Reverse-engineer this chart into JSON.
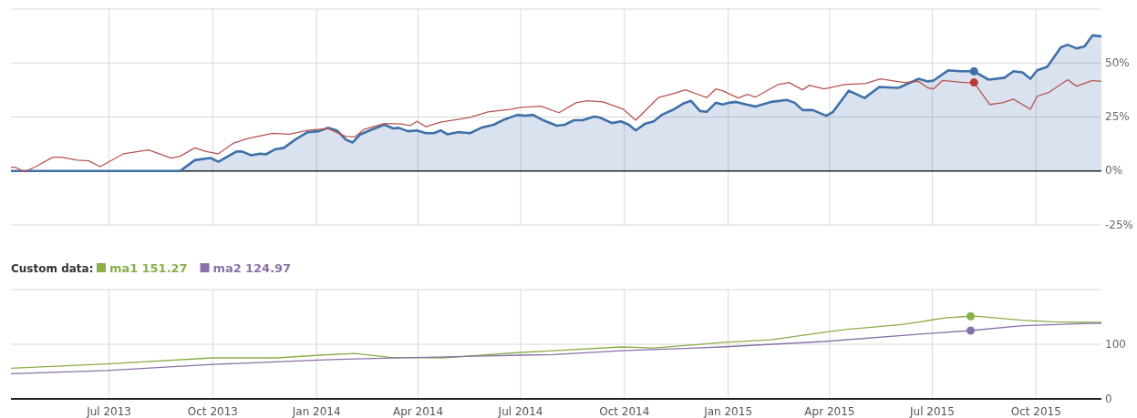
{
  "chart_data": [
    {
      "type": "line",
      "xlim": [
        "2013-04-05",
        "2015-11-28"
      ],
      "ylim": [
        -25,
        75
      ],
      "xticks": [
        {
          "value": "2013-07-01",
          "label": null
        },
        {
          "value": "2013-10-01",
          "label": null
        },
        {
          "value": "2014-01-01",
          "label": null
        },
        {
          "value": "2014-04-01",
          "label": null
        },
        {
          "value": "2014-07-01",
          "label": null
        },
        {
          "value": "2014-10-01",
          "label": null
        },
        {
          "value": "2015-01-01",
          "label": null
        },
        {
          "value": "2015-04-01",
          "label": null
        },
        {
          "value": "2015-07-01",
          "label": null
        },
        {
          "value": "2015-10-01",
          "label": null
        }
      ],
      "yticks": [
        {
          "value": -25,
          "label": "-25%"
        },
        {
          "value": 0,
          "label": "0%"
        },
        {
          "value": 25,
          "label": "25%"
        },
        {
          "value": 50,
          "label": "50%"
        },
        {
          "value": 75,
          "label": null
        }
      ],
      "tick_labels": "y",
      "grid": true,
      "ref_lines": [
        {
          "axis": "y",
          "value": 0,
          "color": "#222222"
        }
      ],
      "series": [
        {
          "type": "area",
          "color": "#3f70a8",
          "x": [
            "2013-04-05",
            "2013-09-02",
            "2013-09-15",
            "2013-09-29",
            "2013-10-06",
            "2013-10-22",
            "2013-10-27",
            "2013-11-04",
            "2013-11-12",
            "2013-11-17",
            "2013-11-25",
            "2013-12-03",
            "2013-12-13",
            "2013-12-24",
            "2014-01-03",
            "2014-01-11",
            "2014-01-19",
            "2014-01-27",
            "2014-02-02",
            "2014-02-09",
            "2014-02-19",
            "2014-03-02",
            "2014-03-10",
            "2014-03-15",
            "2014-03-23",
            "2014-03-31",
            "2014-04-08",
            "2014-04-15",
            "2014-04-21",
            "2014-04-27",
            "2014-05-07",
            "2014-05-17",
            "2014-05-27",
            "2014-06-07",
            "2014-06-15",
            "2014-06-28",
            "2014-07-05",
            "2014-07-12",
            "2014-07-21",
            "2014-08-02",
            "2014-08-09",
            "2014-08-17",
            "2014-08-25",
            "2014-09-04",
            "2014-09-09",
            "2014-09-20",
            "2014-09-28",
            "2014-10-05",
            "2014-10-11",
            "2014-10-19",
            "2014-10-27",
            "2014-11-03",
            "2014-11-14",
            "2014-11-22",
            "2014-11-29",
            "2014-12-07",
            "2014-12-13",
            "2014-12-21",
            "2014-12-27",
            "2015-01-02",
            "2015-01-08",
            "2015-01-17",
            "2015-01-25",
            "2015-02-08",
            "2015-02-22",
            "2015-03-01",
            "2015-03-08",
            "2015-03-17",
            "2015-03-29",
            "2015-04-04",
            "2015-04-18",
            "2015-05-02",
            "2015-05-15",
            "2015-06-01",
            "2015-06-19",
            "2015-06-27",
            "2015-07-02",
            "2015-07-15",
            "2015-07-26",
            "2015-08-07",
            "2015-08-20",
            "2015-09-03",
            "2015-09-11",
            "2015-09-19",
            "2015-09-26",
            "2015-10-02",
            "2015-10-11",
            "2015-10-23",
            "2015-10-29",
            "2015-11-06",
            "2015-11-13",
            "2015-11-20",
            "2015-11-28"
          ],
          "values": [
            0,
            0,
            5,
            6,
            4.3,
            9,
            9,
            7.3,
            8,
            7.7,
            10,
            10.7,
            14.5,
            18,
            18.4,
            20,
            18.8,
            14.5,
            13.2,
            17,
            19.2,
            21.4,
            19.7,
            20,
            18.4,
            18.8,
            17.5,
            17.5,
            18.8,
            17,
            18,
            17.5,
            20,
            21.4,
            23.5,
            26,
            25.6,
            26,
            23.5,
            21,
            21.4,
            23.5,
            23.5,
            25.2,
            24.8,
            22.2,
            23,
            21.4,
            18.8,
            21.8,
            23,
            26,
            28.6,
            31.2,
            32.5,
            27.8,
            27.4,
            31.6,
            30.8,
            31.6,
            32,
            30.8,
            29.9,
            32,
            32.9,
            31.6,
            28.2,
            28.2,
            25.6,
            27.4,
            37.2,
            33.8,
            38.9,
            38.5,
            42.7,
            41.5,
            41.9,
            46.6,
            46.2,
            46.2,
            42.3,
            43.2,
            46.2,
            45.7,
            42.7,
            46.6,
            48.3,
            57.3,
            58.5,
            56.8,
            57.7,
            62.8,
            62.4
          ]
        },
        {
          "color": "#b85450",
          "x": [
            "2013-04-05",
            "2013-04-09",
            "2013-04-17",
            "2013-04-27",
            "2013-05-12",
            "2013-05-20",
            "2013-06-03",
            "2013-06-13",
            "2013-06-23",
            "2013-07-14",
            "2013-08-05",
            "2013-08-25",
            "2013-09-02",
            "2013-09-15",
            "2013-09-25",
            "2013-10-06",
            "2013-10-19",
            "2013-11-01",
            "2013-11-23",
            "2013-12-08",
            "2013-12-24",
            "2014-01-11",
            "2014-01-27",
            "2014-02-04",
            "2014-02-12",
            "2014-03-02",
            "2014-03-17",
            "2014-03-25",
            "2014-03-31",
            "2014-04-08",
            "2014-04-21",
            "2014-05-17",
            "2014-06-02",
            "2014-06-23",
            "2014-07-01",
            "2014-07-19",
            "2014-08-04",
            "2014-08-19",
            "2014-08-29",
            "2014-09-12",
            "2014-09-30",
            "2014-10-11",
            "2014-10-31",
            "2014-11-14",
            "2014-11-24",
            "2014-12-13",
            "2014-12-21",
            "2014-12-27",
            "2015-01-10",
            "2015-01-18",
            "2015-01-25",
            "2015-02-14",
            "2015-02-24",
            "2015-03-08",
            "2015-03-14",
            "2015-03-27",
            "2015-04-14",
            "2015-05-03",
            "2015-05-16",
            "2015-06-06",
            "2015-06-19",
            "2015-06-27",
            "2015-07-02",
            "2015-07-10",
            "2015-07-29",
            "2015-08-07",
            "2015-08-21",
            "2015-09-01",
            "2015-09-11",
            "2015-09-26",
            "2015-10-02",
            "2015-10-12",
            "2015-10-29",
            "2015-11-06",
            "2015-11-20",
            "2015-11-28"
          ],
          "values": [
            1.7,
            1.7,
            -0.4,
            2,
            6.4,
            6.4,
            5,
            4.7,
            2,
            8,
            9.8,
            6,
            6.8,
            10.7,
            9,
            8,
            12.8,
            15,
            17.5,
            17,
            18.8,
            19.7,
            16,
            15.8,
            19.2,
            22,
            21.8,
            21,
            23,
            20.5,
            22.6,
            24.8,
            27.4,
            28.6,
            29.5,
            30,
            27,
            31.6,
            32.5,
            32,
            28.6,
            23.5,
            34,
            35.9,
            37.6,
            34,
            38,
            37.2,
            33.8,
            35.5,
            34.2,
            40,
            41,
            37.6,
            39.7,
            38,
            40,
            40.6,
            42.7,
            41,
            41.5,
            38.5,
            38,
            41.9,
            41,
            41,
            30.8,
            31.6,
            33.3,
            28.6,
            34.6,
            36.3,
            42.3,
            39.3,
            41.9,
            41.5
          ]
        },
        {
          "type": "scatter",
          "color": "#3f70a8",
          "x": [
            "2015-08-07"
          ],
          "values": [
            46.2
          ]
        },
        {
          "type": "scatter",
          "color": "#b83a35",
          "x": [
            "2015-08-07"
          ],
          "values": [
            41
          ]
        }
      ]
    },
    {
      "type": "line",
      "xlim": [
        "2013-04-05",
        "2015-11-28"
      ],
      "ylim": [
        0,
        200
      ],
      "xticks": [
        {
          "value": "2013-07-01",
          "label": "Jul 2013"
        },
        {
          "value": "2013-10-01",
          "label": "Oct 2013"
        },
        {
          "value": "2014-01-01",
          "label": "Jan 2014"
        },
        {
          "value": "2014-04-01",
          "label": "Apr 2014"
        },
        {
          "value": "2014-07-01",
          "label": "Jul 2014"
        },
        {
          "value": "2014-10-01",
          "label": "Oct 2014"
        },
        {
          "value": "2015-01-01",
          "label": "Jan 2015"
        },
        {
          "value": "2015-04-01",
          "label": "Apr 2015"
        },
        {
          "value": "2015-07-01",
          "label": "Jul 2015"
        },
        {
          "value": "2015-10-01",
          "label": "Oct 2015"
        }
      ],
      "yticks": [
        0,
        100,
        {
          "value": 200,
          "label": null
        }
      ],
      "grid": true,
      "legend": "top left",
      "legend_title": "Custom data:",
      "annotations": [
        "151.27",
        "124.97"
      ],
      "series": [
        {
          "name": "ma1",
          "color": "#8aae48",
          "x": [
            "2013-04-05",
            "2013-06-29",
            "2013-10-01",
            "2013-11-27",
            "2014-01-03",
            "2014-02-04",
            "2014-03-07",
            "2014-04-23",
            "2014-07-01",
            "2014-07-30",
            "2014-09-28",
            "2014-10-27",
            "2014-12-26",
            "2015-02-08",
            "2015-03-27",
            "2015-04-15",
            "2015-06-04",
            "2015-06-23",
            "2015-07-12",
            "2015-08-04",
            "2015-08-10",
            "2015-09-19",
            "2015-10-15",
            "2015-11-18",
            "2015-11-28"
          ],
          "values": [
            56,
            64,
            75,
            75,
            80,
            83,
            76,
            75,
            85,
            88,
            95,
            93,
            103,
            108,
            122,
            127,
            136,
            142,
            148,
            151.27,
            151,
            144,
            141,
            140,
            140
          ]
        },
        {
          "name": "ma2",
          "color": "#8a72a8",
          "x": [
            "2013-04-05",
            "2013-06-29",
            "2013-10-01",
            "2014-01-03",
            "2014-02-04",
            "2014-04-08",
            "2014-07-01",
            "2014-07-30",
            "2014-09-28",
            "2014-12-26",
            "2015-03-27",
            "2015-06-23",
            "2015-08-04",
            "2015-09-19",
            "2015-11-18",
            "2015-11-28"
          ],
          "values": [
            46,
            52,
            63,
            71,
            73,
            76,
            80,
            81,
            88,
            95,
            105,
            119,
            124.97,
            134,
            138,
            138
          ]
        },
        {
          "type": "scatter",
          "color": "#8aae48",
          "x": [
            "2015-08-04"
          ],
          "values": [
            151.27
          ]
        },
        {
          "type": "scatter",
          "color": "#8a72a8",
          "x": [
            "2015-08-04"
          ],
          "values": [
            124.97
          ]
        }
      ]
    }
  ]
}
